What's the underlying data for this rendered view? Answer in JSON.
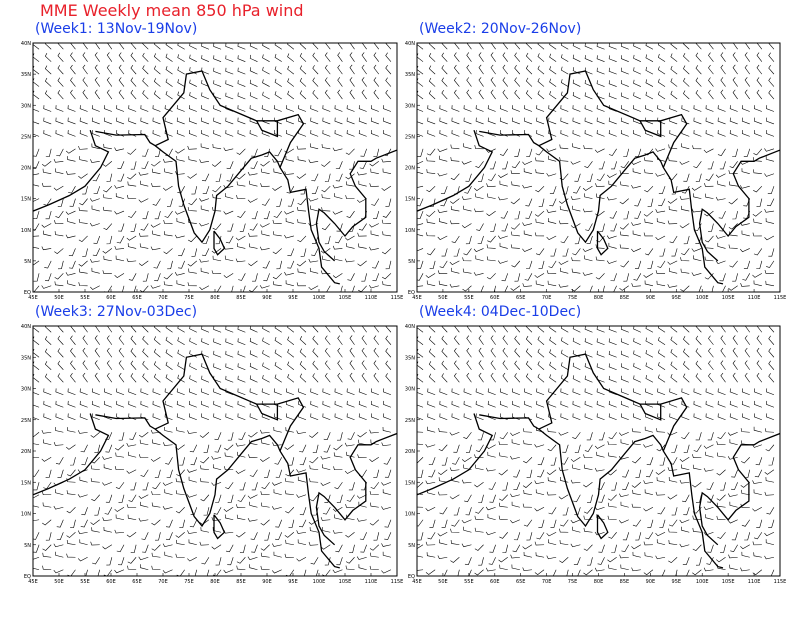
{
  "title": "MME Weekly mean 850 hPa wind",
  "panels": [
    {
      "title": "(Week1: 13Nov-19Nov)"
    },
    {
      "title": "(Week2: 20Nov-26Nov)"
    },
    {
      "title": "(Week3: 27Nov-03Dec)"
    },
    {
      "title": "(Week4: 04Dec-10Dec)"
    }
  ],
  "axes": {
    "xlim": [
      45,
      115
    ],
    "ylim": [
      0,
      40
    ],
    "xticks": [
      {
        "value": 45,
        "label": "45E"
      },
      {
        "value": 50,
        "label": "50E"
      },
      {
        "value": 55,
        "label": "55E"
      },
      {
        "value": 60,
        "label": "60E"
      },
      {
        "value": 65,
        "label": "65E"
      },
      {
        "value": 70,
        "label": "70E"
      },
      {
        "value": 75,
        "label": "75E"
      },
      {
        "value": 80,
        "label": "80E"
      },
      {
        "value": 85,
        "label": "85E"
      },
      {
        "value": 90,
        "label": "90E"
      },
      {
        "value": 95,
        "label": "95E"
      },
      {
        "value": 100,
        "label": "100E"
      },
      {
        "value": 105,
        "label": "105E"
      },
      {
        "value": 110,
        "label": "110E"
      },
      {
        "value": 115,
        "label": "115E"
      }
    ],
    "yticks": [
      {
        "value": 0,
        "label": "EQ"
      },
      {
        "value": 5,
        "label": "5N"
      },
      {
        "value": 10,
        "label": "10N"
      },
      {
        "value": 15,
        "label": "15N"
      },
      {
        "value": 20,
        "label": "20N"
      },
      {
        "value": 25,
        "label": "25N"
      },
      {
        "value": 30,
        "label": "30N"
      },
      {
        "value": 35,
        "label": "35N"
      },
      {
        "value": 40,
        "label": "40N"
      }
    ]
  }
}
